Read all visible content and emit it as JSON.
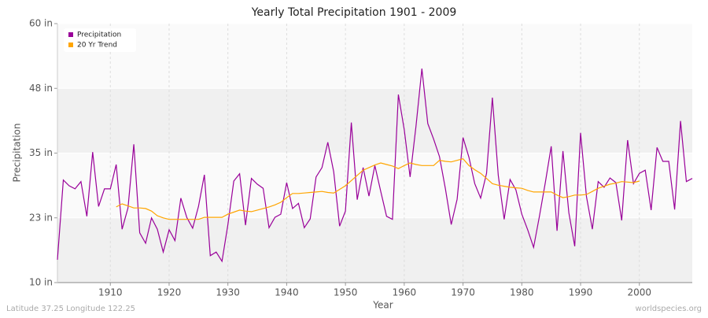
{
  "chart_data": {
    "type": "line",
    "title": "Yearly Total Precipitation 1901 - 2009",
    "x_label": "Year",
    "y_label": "Precipitation",
    "footer_left": "Latitude 37.25 Longitude 122.25",
    "footer_right": "worldspecies.org",
    "x": [
      1901,
      1902,
      1903,
      1904,
      1905,
      1906,
      1907,
      1908,
      1909,
      1910,
      1911,
      1912,
      1913,
      1914,
      1915,
      1916,
      1917,
      1918,
      1919,
      1920,
      1921,
      1922,
      1923,
      1924,
      1925,
      1926,
      1927,
      1928,
      1929,
      1930,
      1931,
      1932,
      1933,
      1934,
      1935,
      1936,
      1937,
      1938,
      1939,
      1940,
      1941,
      1942,
      1943,
      1944,
      1945,
      1946,
      1947,
      1948,
      1949,
      1950,
      1951,
      1952,
      1953,
      1954,
      1955,
      1956,
      1957,
      1958,
      1959,
      1960,
      1961,
      1962,
      1963,
      1964,
      1965,
      1966,
      1967,
      1968,
      1969,
      1970,
      1971,
      1972,
      1973,
      1974,
      1975,
      1976,
      1977,
      1978,
      1979,
      1980,
      1981,
      1982,
      1983,
      1984,
      1985,
      1986,
      1987,
      1988,
      1989,
      1990,
      1991,
      1992,
      1993,
      1994,
      1995,
      1996,
      1997,
      1998,
      1999,
      2000,
      2001,
      2002,
      2003,
      2004,
      2005,
      2006,
      2007,
      2008,
      2009
    ],
    "series": [
      {
        "name": "Precipitation",
        "color": "#990099",
        "values": [
          14.4,
          29.8,
          28.7,
          28.1,
          29.5,
          22.8,
          35.2,
          24.7,
          28.1,
          28.1,
          32.8,
          20.3,
          24.4,
          36.7,
          19.6,
          17.6,
          22.5,
          20.3,
          15.9,
          20.2,
          18.1,
          26.3,
          22.6,
          20.5,
          24.7,
          30.8,
          15.2,
          15.9,
          14.1,
          21.2,
          29.6,
          31.0,
          21.1,
          30.1,
          29.0,
          28.2,
          20.6,
          22.6,
          23.2,
          29.3,
          24.3,
          25.3,
          20.6,
          22.3,
          30.4,
          32.2,
          37.1,
          31.4,
          20.9,
          23.8,
          40.9,
          26.0,
          32.2,
          26.7,
          32.6,
          27.6,
          22.8,
          22.2,
          46.3,
          39.5,
          30.4,
          40.2,
          51.3,
          40.7,
          37.7,
          34.3,
          28.1,
          21.2,
          26.1,
          38.0,
          34.2,
          29.1,
          26.3,
          31.1,
          45.7,
          30.7,
          22.2,
          29.9,
          27.9,
          23.2,
          20.2,
          16.8,
          22.8,
          29.3,
          36.3,
          20.0,
          35.4,
          23.5,
          17.0,
          38.9,
          26.6,
          20.3,
          29.5,
          28.4,
          30.2,
          29.3,
          22.0,
          37.5,
          29.1,
          31.1,
          31.7,
          24.0,
          36.1,
          33.4,
          33.4,
          24.1,
          41.2,
          29.5,
          30.1
        ]
      },
      {
        "name": "20 Yr Trend",
        "color": "#ffa500",
        "values": [
          null,
          null,
          null,
          null,
          null,
          null,
          null,
          null,
          null,
          null,
          24.6,
          25.2,
          24.8,
          24.4,
          24.4,
          24.3,
          23.8,
          22.9,
          22.5,
          22.2,
          22.2,
          22.2,
          22.2,
          22.2,
          22.2,
          22.6,
          22.6,
          22.6,
          22.6,
          23.2,
          23.6,
          24.0,
          23.8,
          23.7,
          24.0,
          24.3,
          24.6,
          25.0,
          25.5,
          26.4,
          27.2,
          27.2,
          27.3,
          27.4,
          27.5,
          27.6,
          27.4,
          27.3,
          28.0,
          28.7,
          29.7,
          30.7,
          31.7,
          32.2,
          32.7,
          33.1,
          32.8,
          32.5,
          32.0,
          32.6,
          33.1,
          32.8,
          32.6,
          32.6,
          32.6,
          33.6,
          33.4,
          33.3,
          33.6,
          33.9,
          32.6,
          31.8,
          31.1,
          30.1,
          29.1,
          28.8,
          28.6,
          28.4,
          28.3,
          28.2,
          27.8,
          27.5,
          27.5,
          27.5,
          27.5,
          26.9,
          26.4,
          26.6,
          26.9,
          26.9,
          27.0,
          27.6,
          28.2,
          28.6,
          29.0,
          29.2,
          29.5,
          29.4,
          29.3,
          29.6,
          null,
          null,
          null,
          null,
          null,
          null,
          null,
          null,
          null
        ]
      }
    ],
    "xlim": [
      1901,
      2009
    ],
    "xticks": [
      1910,
      1920,
      1930,
      1940,
      1950,
      1960,
      1970,
      1980,
      1990,
      2000
    ],
    "ylim": [
      10,
      60
    ],
    "yticks": [
      {
        "value": 10,
        "label": "10 in"
      },
      {
        "value": 22.5,
        "label": "23 in"
      },
      {
        "value": 35,
        "label": "35 in"
      },
      {
        "value": 47.5,
        "label": "48 in"
      },
      {
        "value": 60,
        "label": "60 in"
      }
    ],
    "grid": true,
    "legend": "top-left"
  }
}
